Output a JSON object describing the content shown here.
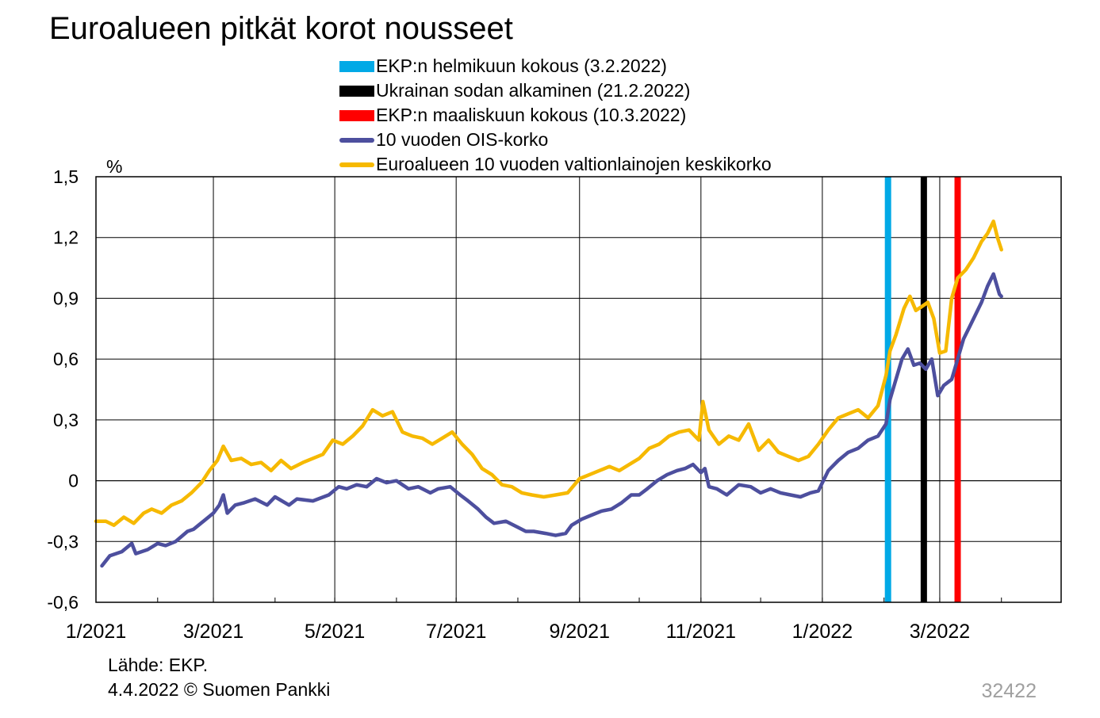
{
  "title": "Euroalueen pitkät korot nousseet",
  "source": "Lähde: EKP.",
  "footer": "4.4.2022 © Suomen Pankki",
  "chart_code": "32422",
  "chart_data": {
    "type": "line",
    "ylabel": "%",
    "ylim": [
      -0.6,
      1.5
    ],
    "ytick_labels": [
      "-0,6",
      "-0,3",
      "0",
      "0,3",
      "0,6",
      "0,9",
      "1,2",
      "1,5"
    ],
    "ytick_values": [
      -0.6,
      -0.3,
      0,
      0.3,
      0.6,
      0.9,
      1.2,
      1.5
    ],
    "x_start": "2021-01-01",
    "x_end": "2022-05-01",
    "xtick_labels": [
      "1/2021",
      "3/2021",
      "5/2021",
      "7/2021",
      "9/2021",
      "11/2021",
      "1/2022",
      "3/2022"
    ],
    "xtick_dates": [
      "2021-01-01",
      "2021-03-01",
      "2021-05-01",
      "2021-07-01",
      "2021-09-01",
      "2021-11-01",
      "2022-01-01",
      "2022-03-01"
    ],
    "grid": true,
    "legend_position": "top",
    "events": [
      {
        "name": "EKP:n helmikuun kokous (3.2.2022)",
        "date": "2022-02-03",
        "color": "#00a9e6"
      },
      {
        "name": "Ukrainan sodan alkaminen (21.2.2022)",
        "date": "2022-02-21",
        "color": "#000000"
      },
      {
        "name": "EKP:n maaliskuun kokous (10.3.2022)",
        "date": "2022-03-10",
        "color": "#ff0000"
      }
    ],
    "series": [
      {
        "name": "10 vuoden OIS-korko",
        "color": "#4d4f9e",
        "points": [
          [
            "2021-01-04",
            -0.42
          ],
          [
            "2021-01-08",
            -0.37
          ],
          [
            "2021-01-14",
            -0.35
          ],
          [
            "2021-01-19",
            -0.31
          ],
          [
            "2021-01-21",
            -0.36
          ],
          [
            "2021-01-27",
            -0.34
          ],
          [
            "2021-02-01",
            -0.31
          ],
          [
            "2021-02-05",
            -0.32
          ],
          [
            "2021-02-10",
            -0.3
          ],
          [
            "2021-02-16",
            -0.25
          ],
          [
            "2021-02-19",
            -0.24
          ],
          [
            "2021-02-24",
            -0.2
          ],
          [
            "2021-03-01",
            -0.16
          ],
          [
            "2021-03-04",
            -0.12
          ],
          [
            "2021-03-06",
            -0.07
          ],
          [
            "2021-03-08",
            -0.16
          ],
          [
            "2021-03-12",
            -0.12
          ],
          [
            "2021-03-16",
            -0.11
          ],
          [
            "2021-03-22",
            -0.09
          ],
          [
            "2021-03-28",
            -0.12
          ],
          [
            "2021-04-01",
            -0.08
          ],
          [
            "2021-04-08",
            -0.12
          ],
          [
            "2021-04-12",
            -0.09
          ],
          [
            "2021-04-20",
            -0.1
          ],
          [
            "2021-04-28",
            -0.07
          ],
          [
            "2021-05-03",
            -0.03
          ],
          [
            "2021-05-07",
            -0.04
          ],
          [
            "2021-05-12",
            -0.02
          ],
          [
            "2021-05-17",
            -0.03
          ],
          [
            "2021-05-22",
            0.01
          ],
          [
            "2021-05-27",
            -0.01
          ],
          [
            "2021-06-01",
            0.0
          ],
          [
            "2021-06-07",
            -0.04
          ],
          [
            "2021-06-12",
            -0.03
          ],
          [
            "2021-06-18",
            -0.06
          ],
          [
            "2021-06-22",
            -0.04
          ],
          [
            "2021-06-28",
            -0.03
          ],
          [
            "2021-07-03",
            -0.07
          ],
          [
            "2021-07-07",
            -0.1
          ],
          [
            "2021-07-12",
            -0.14
          ],
          [
            "2021-07-16",
            -0.18
          ],
          [
            "2021-07-20",
            -0.21
          ],
          [
            "2021-07-26",
            -0.2
          ],
          [
            "2021-08-01",
            -0.23
          ],
          [
            "2021-08-05",
            -0.25
          ],
          [
            "2021-08-09",
            -0.25
          ],
          [
            "2021-08-15",
            -0.26
          ],
          [
            "2021-08-20",
            -0.27
          ],
          [
            "2021-08-25",
            -0.26
          ],
          [
            "2021-08-28",
            -0.22
          ],
          [
            "2021-09-02",
            -0.19
          ],
          [
            "2021-09-07",
            -0.17
          ],
          [
            "2021-09-12",
            -0.15
          ],
          [
            "2021-09-17",
            -0.14
          ],
          [
            "2021-09-22",
            -0.11
          ],
          [
            "2021-09-27",
            -0.07
          ],
          [
            "2021-10-01",
            -0.07
          ],
          [
            "2021-10-05",
            -0.04
          ],
          [
            "2021-10-10",
            0.0
          ],
          [
            "2021-10-15",
            0.03
          ],
          [
            "2021-10-20",
            0.05
          ],
          [
            "2021-10-24",
            0.06
          ],
          [
            "2021-10-28",
            0.08
          ],
          [
            "2021-11-01",
            0.04
          ],
          [
            "2021-11-03",
            0.06
          ],
          [
            "2021-11-05",
            -0.03
          ],
          [
            "2021-11-09",
            -0.04
          ],
          [
            "2021-11-14",
            -0.07
          ],
          [
            "2021-11-20",
            -0.02
          ],
          [
            "2021-11-26",
            -0.03
          ],
          [
            "2021-12-01",
            -0.06
          ],
          [
            "2021-12-06",
            -0.04
          ],
          [
            "2021-12-11",
            -0.06
          ],
          [
            "2021-12-16",
            -0.07
          ],
          [
            "2021-12-21",
            -0.08
          ],
          [
            "2021-12-26",
            -0.06
          ],
          [
            "2021-12-30",
            -0.05
          ],
          [
            "2022-01-04",
            0.05
          ],
          [
            "2022-01-09",
            0.1
          ],
          [
            "2022-01-14",
            0.14
          ],
          [
            "2022-01-19",
            0.16
          ],
          [
            "2022-01-24",
            0.2
          ],
          [
            "2022-01-29",
            0.22
          ],
          [
            "2022-02-02",
            0.28
          ],
          [
            "2022-02-04",
            0.4
          ],
          [
            "2022-02-07",
            0.5
          ],
          [
            "2022-02-10",
            0.6
          ],
          [
            "2022-02-13",
            0.65
          ],
          [
            "2022-02-16",
            0.57
          ],
          [
            "2022-02-19",
            0.58
          ],
          [
            "2022-02-22",
            0.55
          ],
          [
            "2022-02-25",
            0.6
          ],
          [
            "2022-02-28",
            0.42
          ],
          [
            "2022-03-03",
            0.47
          ],
          [
            "2022-03-07",
            0.5
          ],
          [
            "2022-03-10",
            0.6
          ],
          [
            "2022-03-13",
            0.7
          ],
          [
            "2022-03-16",
            0.76
          ],
          [
            "2022-03-19",
            0.82
          ],
          [
            "2022-03-22",
            0.88
          ],
          [
            "2022-03-25",
            0.96
          ],
          [
            "2022-03-28",
            1.02
          ],
          [
            "2022-03-31",
            0.92
          ],
          [
            "2022-04-01",
            0.91
          ]
        ]
      },
      {
        "name": "Euroalueen 10 vuoden valtionlainojen keskikorko",
        "color": "#f6b900",
        "points": [
          [
            "2021-01-01",
            -0.2
          ],
          [
            "2021-01-06",
            -0.2
          ],
          [
            "2021-01-10",
            -0.22
          ],
          [
            "2021-01-15",
            -0.18
          ],
          [
            "2021-01-20",
            -0.21
          ],
          [
            "2021-01-25",
            -0.16
          ],
          [
            "2021-01-29",
            -0.14
          ],
          [
            "2021-02-03",
            -0.16
          ],
          [
            "2021-02-08",
            -0.12
          ],
          [
            "2021-02-13",
            -0.1
          ],
          [
            "2021-02-18",
            -0.06
          ],
          [
            "2021-02-23",
            -0.01
          ],
          [
            "2021-02-27",
            0.05
          ],
          [
            "2021-03-03",
            0.1
          ],
          [
            "2021-03-06",
            0.17
          ],
          [
            "2021-03-10",
            0.1
          ],
          [
            "2021-03-15",
            0.11
          ],
          [
            "2021-03-20",
            0.08
          ],
          [
            "2021-03-25",
            0.09
          ],
          [
            "2021-03-30",
            0.05
          ],
          [
            "2021-04-04",
            0.1
          ],
          [
            "2021-04-09",
            0.06
          ],
          [
            "2021-04-15",
            0.09
          ],
          [
            "2021-04-20",
            0.11
          ],
          [
            "2021-04-25",
            0.13
          ],
          [
            "2021-04-30",
            0.2
          ],
          [
            "2021-05-05",
            0.18
          ],
          [
            "2021-05-10",
            0.22
          ],
          [
            "2021-05-15",
            0.27
          ],
          [
            "2021-05-20",
            0.35
          ],
          [
            "2021-05-25",
            0.32
          ],
          [
            "2021-05-30",
            0.34
          ],
          [
            "2021-06-04",
            0.24
          ],
          [
            "2021-06-09",
            0.22
          ],
          [
            "2021-06-14",
            0.21
          ],
          [
            "2021-06-19",
            0.18
          ],
          [
            "2021-06-24",
            0.21
          ],
          [
            "2021-06-29",
            0.24
          ],
          [
            "2021-07-04",
            0.18
          ],
          [
            "2021-07-09",
            0.13
          ],
          [
            "2021-07-14",
            0.06
          ],
          [
            "2021-07-19",
            0.03
          ],
          [
            "2021-07-24",
            -0.02
          ],
          [
            "2021-07-29",
            -0.03
          ],
          [
            "2021-08-03",
            -0.06
          ],
          [
            "2021-08-08",
            -0.07
          ],
          [
            "2021-08-14",
            -0.08
          ],
          [
            "2021-08-20",
            -0.07
          ],
          [
            "2021-08-26",
            -0.06
          ],
          [
            "2021-09-01",
            0.01
          ],
          [
            "2021-09-06",
            0.03
          ],
          [
            "2021-09-11",
            0.05
          ],
          [
            "2021-09-16",
            0.07
          ],
          [
            "2021-09-21",
            0.05
          ],
          [
            "2021-09-26",
            0.08
          ],
          [
            "2021-10-01",
            0.11
          ],
          [
            "2021-10-06",
            0.16
          ],
          [
            "2021-10-11",
            0.18
          ],
          [
            "2021-10-16",
            0.22
          ],
          [
            "2021-10-21",
            0.24
          ],
          [
            "2021-10-26",
            0.25
          ],
          [
            "2021-10-31",
            0.2
          ],
          [
            "2021-11-02",
            0.39
          ],
          [
            "2021-11-05",
            0.25
          ],
          [
            "2021-11-10",
            0.18
          ],
          [
            "2021-11-15",
            0.22
          ],
          [
            "2021-11-20",
            0.2
          ],
          [
            "2021-11-25",
            0.28
          ],
          [
            "2021-11-30",
            0.15
          ],
          [
            "2021-12-05",
            0.2
          ],
          [
            "2021-12-10",
            0.14
          ],
          [
            "2021-12-15",
            0.12
          ],
          [
            "2021-12-20",
            0.1
          ],
          [
            "2021-12-25",
            0.12
          ],
          [
            "2021-12-30",
            0.18
          ],
          [
            "2022-01-04",
            0.25
          ],
          [
            "2022-01-09",
            0.31
          ],
          [
            "2022-01-14",
            0.33
          ],
          [
            "2022-01-19",
            0.35
          ],
          [
            "2022-01-24",
            0.31
          ],
          [
            "2022-01-29",
            0.37
          ],
          [
            "2022-02-02",
            0.52
          ],
          [
            "2022-02-04",
            0.64
          ],
          [
            "2022-02-07",
            0.72
          ],
          [
            "2022-02-11",
            0.85
          ],
          [
            "2022-02-14",
            0.91
          ],
          [
            "2022-02-17",
            0.84
          ],
          [
            "2022-02-20",
            0.86
          ],
          [
            "2022-02-23",
            0.88
          ],
          [
            "2022-02-26",
            0.8
          ],
          [
            "2022-03-01",
            0.63
          ],
          [
            "2022-03-04",
            0.64
          ],
          [
            "2022-03-07",
            0.9
          ],
          [
            "2022-03-10",
            1.0
          ],
          [
            "2022-03-14",
            1.04
          ],
          [
            "2022-03-18",
            1.1
          ],
          [
            "2022-03-22",
            1.18
          ],
          [
            "2022-03-25",
            1.22
          ],
          [
            "2022-03-28",
            1.28
          ],
          [
            "2022-03-30",
            1.2
          ],
          [
            "2022-04-01",
            1.14
          ]
        ]
      }
    ]
  }
}
